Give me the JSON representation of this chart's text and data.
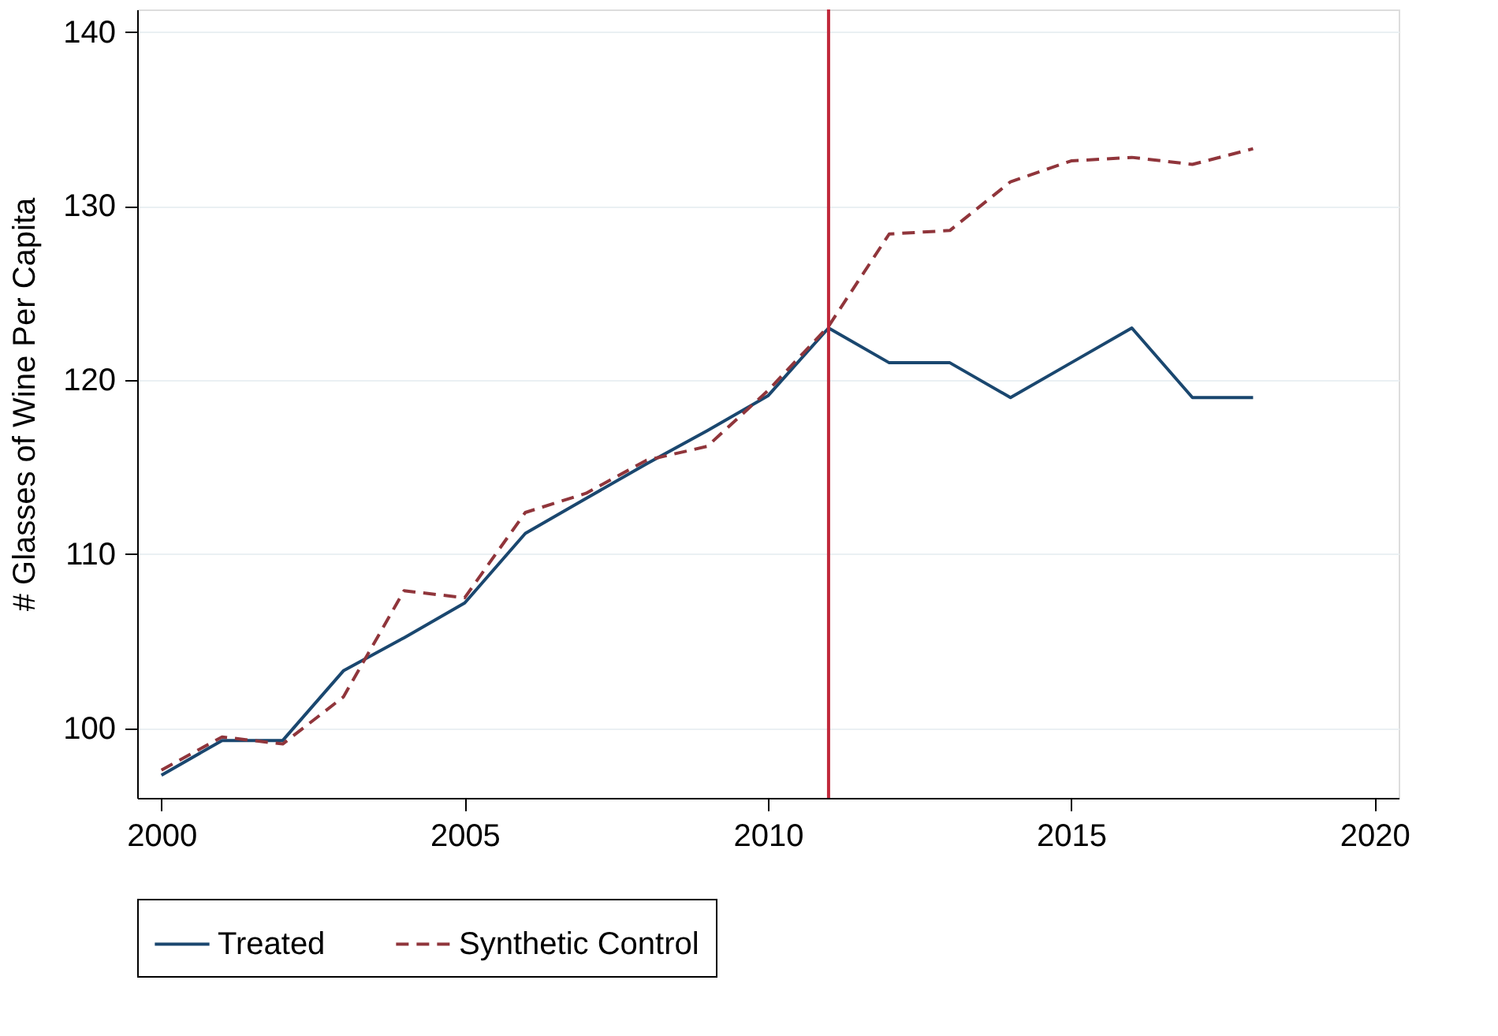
{
  "chart_data": {
    "type": "line",
    "ylabel": "# Glasses of Wine Per Capita",
    "x": [
      2000,
      2001,
      2002,
      2003,
      2004,
      2005,
      2006,
      2007,
      2008,
      2009,
      2010,
      2011,
      2012,
      2013,
      2014,
      2015,
      2016,
      2017,
      2018
    ],
    "series": [
      {
        "name": "Treated",
        "color": "#1a476f",
        "line_style": "solid",
        "values": [
          97.3,
          99.3,
          99.3,
          103.3,
          105.2,
          107.2,
          111.2,
          113.2,
          115.2,
          117.1,
          119.1,
          123,
          121,
          121,
          119,
          121,
          123,
          119,
          119
        ]
      },
      {
        "name": "Synthetic Control",
        "color": "#90353b",
        "line_style": "dashed",
        "values": [
          97.6,
          99.5,
          99.1,
          101.8,
          107.9,
          107.5,
          112.4,
          113.5,
          115.4,
          116.2,
          119.4,
          123.1,
          128.4,
          128.6,
          131.4,
          132.6,
          132.8,
          132.4,
          133.3
        ]
      }
    ],
    "xlim": [
      1999.6,
      2020.4
    ],
    "xticks": [
      2000,
      2005,
      2010,
      2015,
      2020
    ],
    "ylim": [
      96,
      141.3
    ],
    "yticks": [
      100,
      110,
      120,
      130,
      140
    ],
    "ref_lines": [
      {
        "axis": "x",
        "value": 2011,
        "color": "#c0283a"
      }
    ],
    "grid": "y",
    "legend": "bottom"
  }
}
